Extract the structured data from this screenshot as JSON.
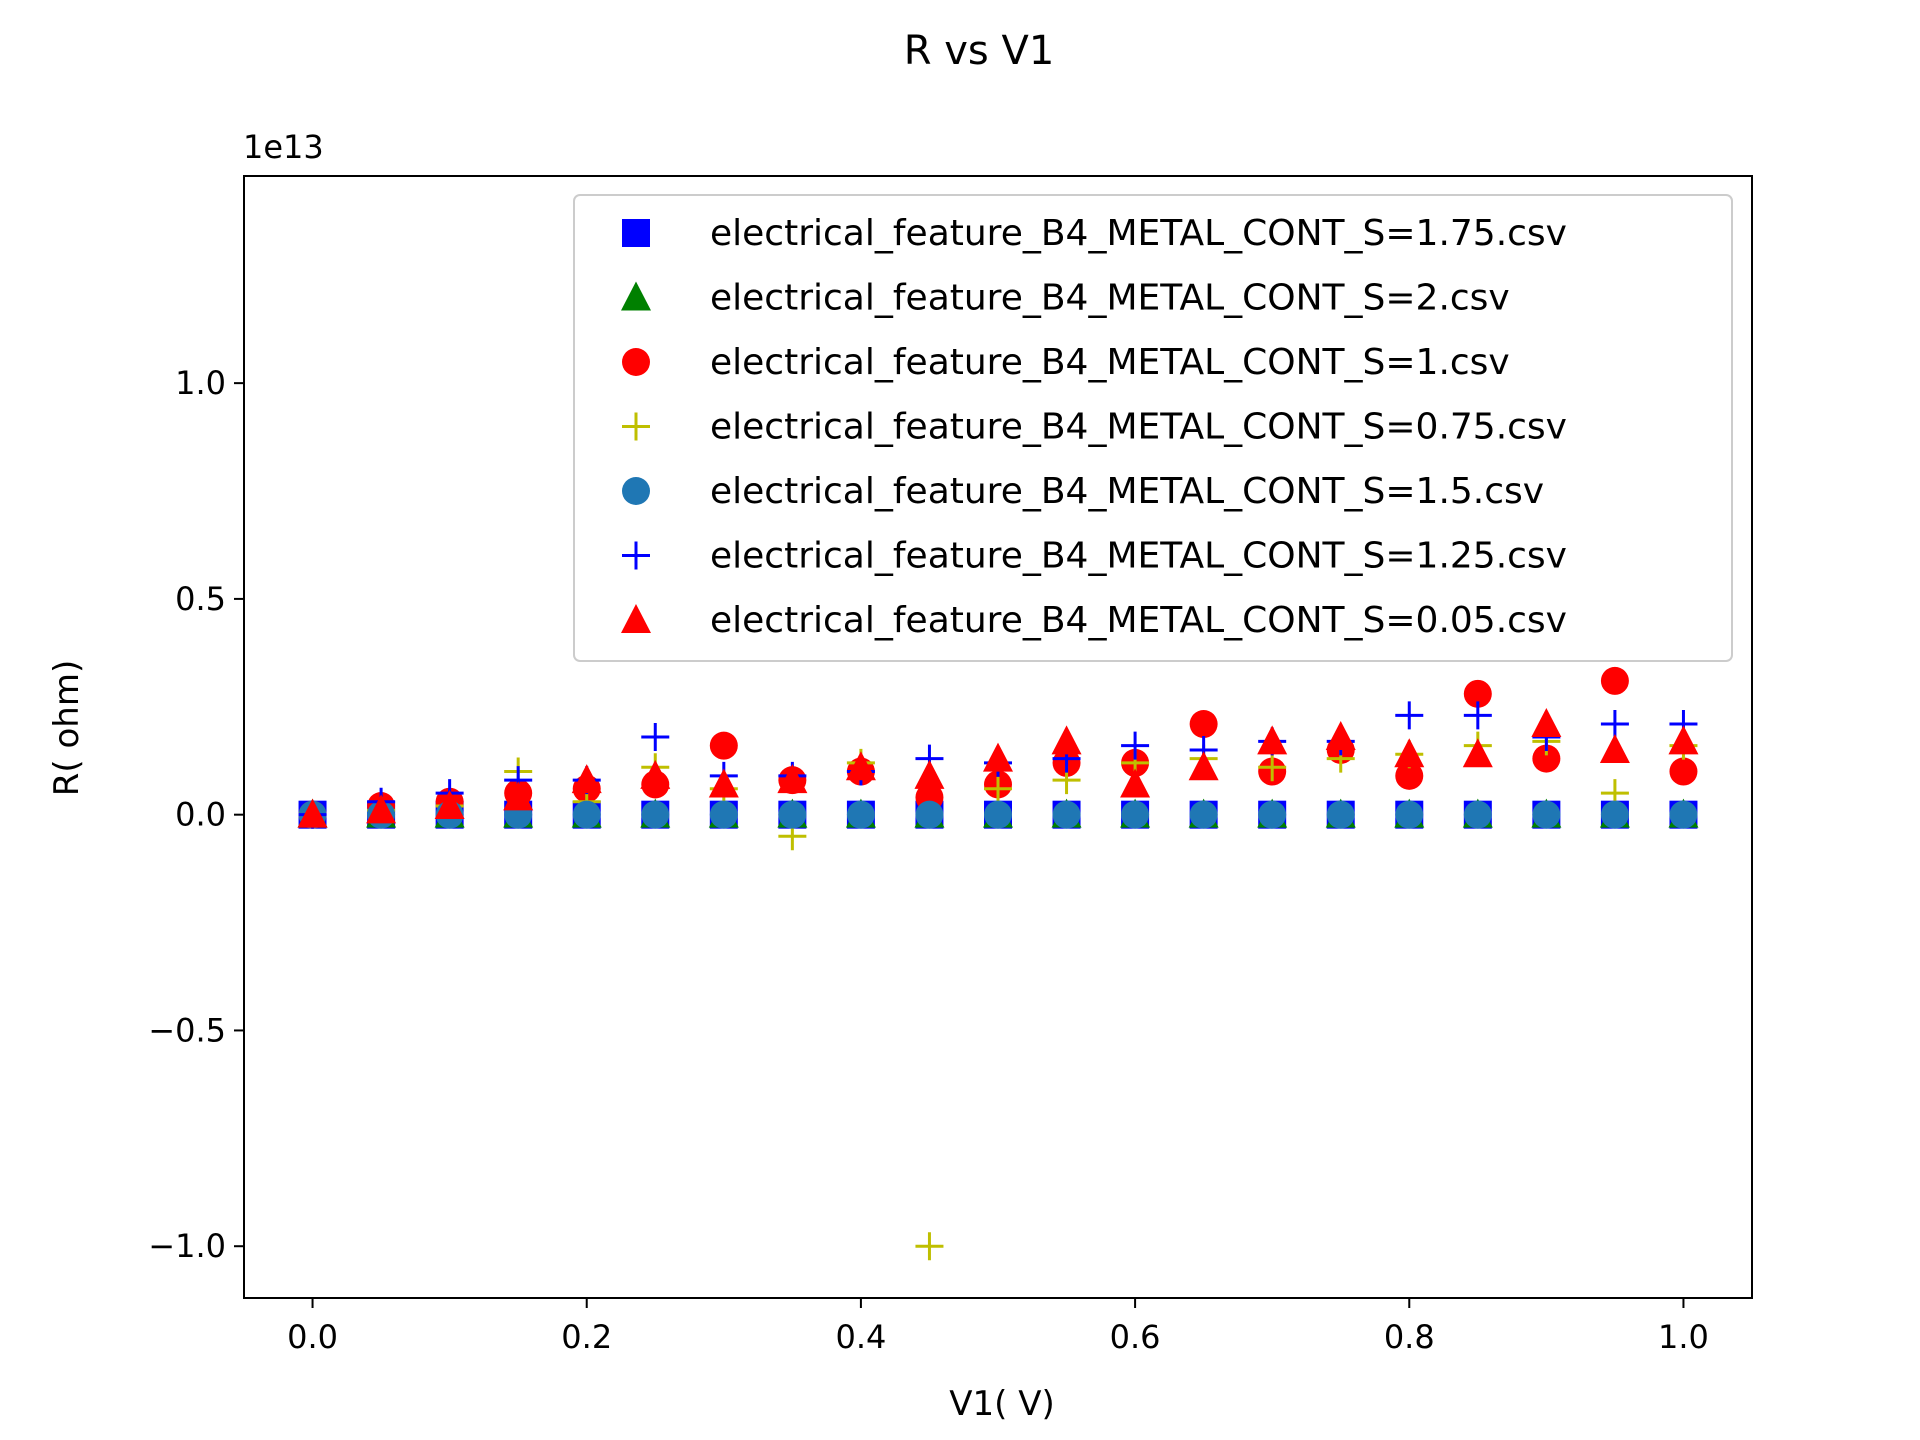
{
  "chart_data": {
    "type": "scatter",
    "title": "R vs V1",
    "xlabel": "V1( V)",
    "ylabel": "R( ohm)",
    "y_offset_label": "1e13",
    "xlim": [
      -0.05,
      1.05
    ],
    "ylim": [
      -11200000000000,
      14800000000000
    ],
    "xticks": [
      0.0,
      0.2,
      0.4,
      0.6,
      0.8,
      1.0
    ],
    "xtick_labels": [
      "0.0",
      "0.2",
      "0.4",
      "0.6",
      "0.8",
      "1.0"
    ],
    "yticks": [
      -10000000000000,
      -5000000000000,
      0,
      5000000000000,
      10000000000000
    ],
    "ytick_labels": [
      "−1.0",
      "−0.5",
      "0.0",
      "0.5",
      "1.0"
    ],
    "grid": false,
    "legend_position": "top-right",
    "x": [
      0.0,
      0.05,
      0.1,
      0.15,
      0.2,
      0.25,
      0.3,
      0.35,
      0.4,
      0.45,
      0.5,
      0.55,
      0.6,
      0.65,
      0.7,
      0.75,
      0.8,
      0.85,
      0.9,
      0.95,
      1.0
    ],
    "series": [
      {
        "name": "electrical_feature_B4_METAL_CONT_S=1.75.csv",
        "marker": "square",
        "color": "#0000ff",
        "y": [
          0,
          0,
          0,
          0,
          0,
          0,
          0,
          0,
          0,
          0,
          0,
          0,
          0,
          0,
          0,
          0,
          0,
          0,
          0,
          0,
          0
        ]
      },
      {
        "name": "electrical_feature_B4_METAL_CONT_S=2.csv",
        "marker": "triangle",
        "color": "#008000",
        "y": [
          0,
          0,
          0,
          0,
          0,
          0,
          0,
          0,
          0,
          0,
          0,
          0,
          0,
          0,
          0,
          0,
          0,
          0,
          0,
          0,
          0
        ]
      },
      {
        "name": "electrical_feature_B4_METAL_CONT_S=1.csv",
        "marker": "circle",
        "color": "#ff0000",
        "y": [
          0,
          200000000000,
          300000000000,
          500000000000,
          600000000000,
          700000000000,
          1600000000000,
          800000000000,
          1000000000000,
          400000000000,
          700000000000,
          1200000000000,
          1200000000000,
          2100000000000,
          1000000000000,
          1500000000000,
          900000000000,
          2800000000000,
          1300000000000,
          3100000000000,
          1000000000000
        ]
      },
      {
        "name": "electrical_feature_B4_METAL_CONT_S=0.75.csv",
        "marker": "plus",
        "color": "#bfbf00",
        "y": [
          0,
          100000000000,
          200000000000,
          1000000000000,
          300000000000,
          1100000000000,
          600000000000,
          -500000000000,
          1200000000000,
          -10000000000000,
          600000000000,
          800000000000,
          1200000000000,
          1300000000000,
          1100000000000,
          1300000000000,
          1400000000000,
          1600000000000,
          1700000000000,
          500000000000,
          1600000000000
        ]
      },
      {
        "name": "electrical_feature_B4_METAL_CONT_S=1.5.csv",
        "marker": "circle",
        "color": "#1f77b4",
        "y": [
          0,
          0,
          0,
          0,
          0,
          0,
          0,
          0,
          0,
          0,
          0,
          0,
          0,
          0,
          0,
          0,
          0,
          0,
          0,
          0,
          0
        ]
      },
      {
        "name": "electrical_feature_B4_METAL_CONT_S=1.25.csv",
        "marker": "plus",
        "color": "#0000ff",
        "y": [
          0,
          300000000000,
          500000000000,
          800000000000,
          800000000000,
          1800000000000,
          900000000000,
          900000000000,
          1000000000000,
          1300000000000,
          1200000000000,
          1300000000000,
          1600000000000,
          1500000000000,
          1700000000000,
          1700000000000,
          2300000000000,
          2300000000000,
          1800000000000,
          2100000000000,
          2100000000000
        ]
      },
      {
        "name": "electrical_feature_B4_METAL_CONT_S=0.05.csv",
        "marker": "triangle",
        "color": "#ff0000",
        "y": [
          0,
          100000000000,
          200000000000,
          400000000000,
          800000000000,
          900000000000,
          700000000000,
          800000000000,
          1100000000000,
          900000000000,
          1300000000000,
          1700000000000,
          700000000000,
          1100000000000,
          1700000000000,
          1800000000000,
          1400000000000,
          1400000000000,
          2100000000000,
          1500000000000,
          1700000000000
        ]
      }
    ]
  }
}
